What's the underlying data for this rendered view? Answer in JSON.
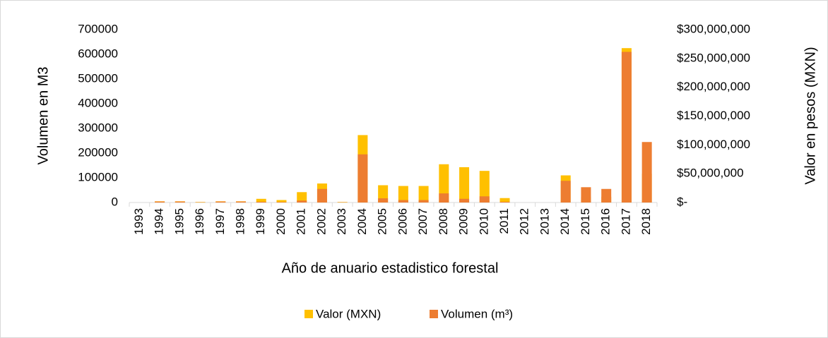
{
  "chart_data": {
    "type": "bar",
    "x_label": "Año de anuario estadistico forestal",
    "y_label": "Volumen en M3",
    "y2_label": "Valor en pesos (MXN)",
    "categories": [
      "1993",
      "1994",
      "1995",
      "1996",
      "1997",
      "1998",
      "1999",
      "2000",
      "2001",
      "2002",
      "2003",
      "2004",
      "2005",
      "2006",
      "2007",
      "2008",
      "2009",
      "2010",
      "2011",
      "2012",
      "2013",
      "2014",
      "2015",
      "2016",
      "2017",
      "2018"
    ],
    "series": [
      {
        "name": "Valor (MXN)",
        "color": "#ffc000",
        "axis": "y2",
        "values": [
          0,
          2100000,
          2100000,
          900000,
          2100000,
          2100000,
          6400000,
          4300000,
          18000000,
          33000000,
          900000,
          117000000,
          30000000,
          28700000,
          28700000,
          66400000,
          61300000,
          54900000,
          7700000,
          0,
          0,
          47100000,
          10000000,
          10000000,
          267900000,
          50000000
        ]
      },
      {
        "name": "Volumen (m³)",
        "color": "#ed7d31",
        "axis": "y",
        "values": [
          0,
          4000,
          4000,
          1000,
          4000,
          4000,
          3000,
          2000,
          8000,
          55000,
          1000,
          195000,
          17000,
          10000,
          10000,
          37000,
          15000,
          25000,
          3000,
          0,
          0,
          88000,
          62000,
          55000,
          610000,
          245000
        ]
      }
    ],
    "ylim": [
      0,
      700000
    ],
    "yticks": [
      0,
      100000,
      200000,
      300000,
      400000,
      500000,
      600000,
      700000
    ],
    "y2lim": [
      0,
      300000000
    ],
    "y2ticks": [
      {
        "value": 0,
        "label": "$-"
      },
      {
        "value": 50000000,
        "label": "$50,000,000"
      },
      {
        "value": 100000000,
        "label": "$100,000,000"
      },
      {
        "value": 150000000,
        "label": "$150,000,000"
      },
      {
        "value": 200000000,
        "label": "$200,000,000"
      },
      {
        "value": 250000000,
        "label": "$250,000,000"
      },
      {
        "value": 300000000,
        "label": "$300,000,000"
      }
    ],
    "legend": "bottom",
    "grid": false
  }
}
